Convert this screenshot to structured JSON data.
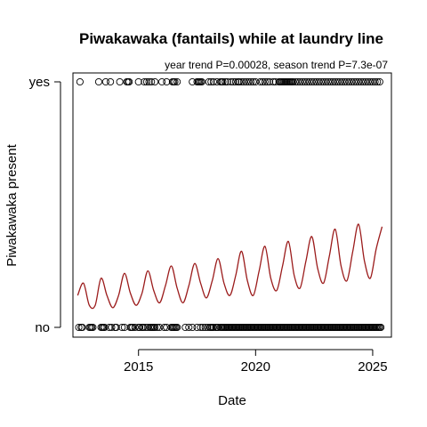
{
  "chart_data": {
    "type": "scatter",
    "title": "Piwakawaka (fantails) while at laundry line",
    "subtitle": "year trend P=0.00028, season trend P=7.3e-07",
    "xlabel": "Date",
    "ylabel": "Piwakawaka present",
    "x_range": [
      2012.2,
      2025.8
    ],
    "x_ticks": [
      2015,
      2020,
      2025
    ],
    "x_tick_labels": [
      "2015",
      "2020",
      "2025"
    ],
    "y_range": [
      0,
      1
    ],
    "y_ticks": [
      0,
      1
    ],
    "y_tick_labels": [
      "no",
      "yes"
    ],
    "grid": false,
    "legend": "none",
    "point_color": "#000000",
    "line_color": "#9b1b1b",
    "observations_yes": [
      2012.5,
      2013.3,
      2013.6,
      2013.8,
      2014.2,
      2014.5,
      2014.55,
      2014.6,
      2015.0,
      2015.25,
      2015.35,
      2015.45,
      2015.55,
      2015.7,
      2016.0,
      2016.2,
      2016.45,
      2016.5,
      2016.55,
      2016.65,
      2017.3,
      2017.5,
      2017.55,
      2017.6,
      2017.65,
      2017.7,
      2018.0,
      2018.1,
      2018.2,
      2018.35,
      2018.5,
      2018.55,
      2018.6,
      2018.7,
      2018.8,
      2018.95,
      2019.05,
      2019.15,
      2019.25,
      2019.3,
      2019.4,
      2019.5,
      2019.6,
      2019.7,
      2019.8,
      2019.9,
      2020.0,
      2020.2,
      2020.3,
      2020.4,
      2020.5,
      2020.6,
      2020.75,
      2020.85,
      2021.0,
      2021.05,
      2021.1,
      2021.15,
      2021.2,
      2021.25,
      2021.3,
      2021.35,
      2021.4,
      2021.45,
      2021.5,
      2021.55,
      2021.6,
      2021.7,
      2021.8,
      2021.9,
      2022.0,
      2022.1,
      2022.2,
      2022.3,
      2022.4,
      2022.5,
      2022.6,
      2022.7,
      2022.8,
      2022.9,
      2023.0,
      2023.1,
      2023.2,
      2023.3,
      2023.4,
      2023.5,
      2023.6,
      2023.7,
      2023.8,
      2023.9,
      2024.0,
      2024.1,
      2024.2,
      2024.3,
      2024.4,
      2024.5,
      2024.6,
      2024.7,
      2024.8,
      2024.9,
      2025.0,
      2025.1,
      2025.2,
      2025.3
    ],
    "observations_no": [
      2012.45,
      2012.55,
      2012.6,
      2012.9,
      2012.95,
      2013.0,
      2013.05,
      2013.4,
      2013.45,
      2013.5,
      2013.55,
      2013.75,
      2013.85,
      2014.0,
      2014.05,
      2014.3,
      2014.4,
      2014.65,
      2014.7,
      2014.75,
      2014.85,
      2015.0,
      2015.05,
      2015.15,
      2015.2,
      2015.3,
      2015.4,
      2015.5,
      2015.55,
      2015.6,
      2015.65,
      2015.7,
      2015.8,
      2015.9,
      2016.1,
      2016.2,
      2016.4,
      2016.45,
      2016.5,
      2016.55,
      2016.6,
      2016.65,
      2017.0,
      2017.15,
      2017.3,
      2017.5,
      2017.65,
      2017.75,
      2017.85,
      2017.95,
      2018.05,
      2018.1,
      2018.15,
      2018.2,
      2018.3,
      2018.35,
      2018.4,
      2018.5,
      2018.55,
      2018.6,
      2018.65,
      2018.7,
      2018.75,
      2018.8,
      2018.85,
      2018.9,
      2018.95,
      2019.0,
      2019.05,
      2019.1,
      2019.15,
      2019.2,
      2019.25,
      2019.3,
      2019.35,
      2019.4,
      2019.45,
      2019.5,
      2019.55,
      2019.6,
      2019.65,
      2019.7,
      2019.75,
      2019.8,
      2019.85,
      2019.9,
      2019.95,
      2020.0,
      2020.05,
      2020.1,
      2020.15,
      2020.2,
      2020.25,
      2020.3,
      2020.35,
      2020.4,
      2020.45,
      2020.5,
      2020.55,
      2020.6,
      2020.65,
      2020.7,
      2020.75,
      2020.8,
      2020.85,
      2020.9,
      2020.95,
      2021.0,
      2021.05,
      2021.1,
      2021.15,
      2021.2,
      2021.25,
      2021.3,
      2021.35,
      2021.4,
      2021.45,
      2021.5,
      2021.55,
      2021.6,
      2021.65,
      2021.7,
      2021.75,
      2021.8,
      2021.85,
      2021.9,
      2021.95,
      2022.0,
      2022.05,
      2022.1,
      2022.15,
      2022.2,
      2022.25,
      2022.3,
      2022.35,
      2022.4,
      2022.45,
      2022.5,
      2022.55,
      2022.6,
      2022.65,
      2022.7,
      2022.75,
      2022.8,
      2022.85,
      2022.9,
      2022.95,
      2023.0,
      2023.05,
      2023.1,
      2023.15,
      2023.2,
      2023.25,
      2023.3,
      2023.35,
      2023.4,
      2023.45,
      2023.5,
      2023.55,
      2023.6,
      2023.65,
      2023.7,
      2023.75,
      2023.8,
      2023.85,
      2023.9,
      2023.95,
      2024.0,
      2024.05,
      2024.1,
      2024.15,
      2024.2,
      2024.25,
      2024.3,
      2024.35,
      2024.4,
      2024.45,
      2024.5,
      2024.55,
      2024.6,
      2024.65,
      2024.7,
      2024.75,
      2024.8,
      2024.85,
      2024.9,
      2024.95,
      2025.0,
      2025.05,
      2025.1,
      2025.15,
      2025.2,
      2025.25,
      2025.3,
      2025.35
    ],
    "fitted_curve": {
      "x": [
        2012.4,
        2012.65,
        2012.9,
        2013.15,
        2013.4,
        2013.65,
        2013.9,
        2014.15,
        2014.4,
        2014.65,
        2014.9,
        2015.15,
        2015.4,
        2015.65,
        2015.9,
        2016.15,
        2016.4,
        2016.65,
        2016.9,
        2017.15,
        2017.4,
        2017.65,
        2017.9,
        2018.15,
        2018.4,
        2018.65,
        2018.9,
        2019.15,
        2019.4,
        2019.65,
        2019.9,
        2020.15,
        2020.4,
        2020.65,
        2020.9,
        2021.15,
        2021.4,
        2021.65,
        2021.9,
        2022.15,
        2022.4,
        2022.65,
        2022.9,
        2023.15,
        2023.4,
        2023.65,
        2023.9,
        2024.15,
        2024.4,
        2024.65,
        2024.9,
        2025.15,
        2025.4
      ],
      "y": [
        0.13,
        0.18,
        0.09,
        0.09,
        0.2,
        0.13,
        0.08,
        0.13,
        0.22,
        0.14,
        0.09,
        0.14,
        0.23,
        0.15,
        0.1,
        0.17,
        0.25,
        0.16,
        0.1,
        0.17,
        0.26,
        0.18,
        0.12,
        0.19,
        0.28,
        0.18,
        0.13,
        0.21,
        0.31,
        0.19,
        0.13,
        0.23,
        0.33,
        0.2,
        0.15,
        0.25,
        0.35,
        0.21,
        0.16,
        0.27,
        0.37,
        0.24,
        0.18,
        0.29,
        0.4,
        0.25,
        0.19,
        0.31,
        0.42,
        0.27,
        0.2,
        0.32,
        0.41
      ]
    }
  }
}
